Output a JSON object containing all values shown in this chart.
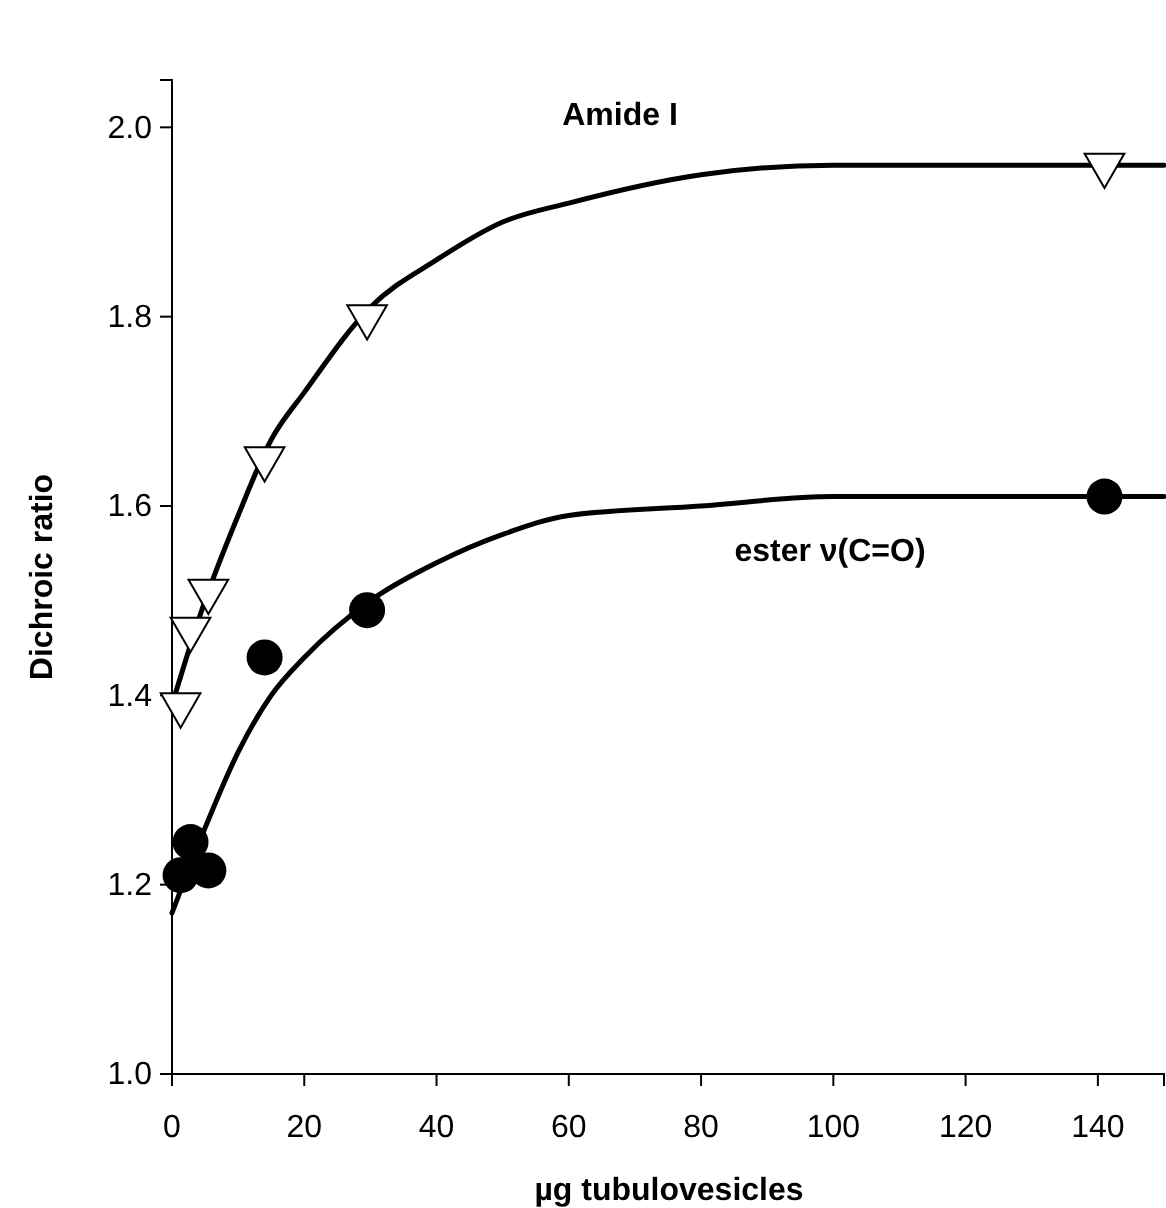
{
  "chart_data": {
    "type": "scatter",
    "xlabel": "µg tubulovesicles",
    "ylabel": "Dichroic ratio",
    "x": [
      1.3,
      2.8,
      5.5,
      14,
      29.5,
      141
    ],
    "xlim": [
      0,
      150
    ],
    "ylim": [
      1.0,
      2.05
    ],
    "xticks": [
      0,
      20,
      40,
      60,
      80,
      100,
      120,
      140
    ],
    "yticks": [
      {
        "value": 1.0,
        "label": "1.0"
      },
      {
        "value": 1.2,
        "label": "1.2"
      },
      {
        "value": 1.4,
        "label": "1.4"
      },
      {
        "value": 1.6,
        "label": "1.6"
      },
      {
        "value": 1.8,
        "label": "1.8"
      },
      {
        "value": 2.0,
        "label": "2.0"
      }
    ],
    "grid": false,
    "series": [
      {
        "type": "scatter",
        "marker": "triangle",
        "color": "#000000",
        "values": [
          1.39,
          1.47,
          1.51,
          1.65,
          1.8,
          1.96
        ]
      },
      {
        "type": "scatter",
        "marker": "circle",
        "color": "#000000",
        "values": [
          1.21,
          1.245,
          1.215,
          1.44,
          1.49,
          1.61
        ]
      },
      {
        "type": "line",
        "marker": "none",
        "line_style": "solid",
        "color": "#000000",
        "x": [
          0,
          5,
          10,
          15,
          20,
          30,
          40,
          50,
          60,
          80,
          100,
          150
        ],
        "values": [
          1.39,
          1.5,
          1.59,
          1.67,
          1.72,
          1.81,
          1.86,
          1.9,
          1.92,
          1.95,
          1.96,
          1.96
        ]
      },
      {
        "type": "line",
        "marker": "none",
        "line_style": "solid",
        "color": "#000000",
        "x": [
          0,
          5,
          10,
          15,
          20,
          30,
          40,
          50,
          60,
          80,
          100,
          150
        ],
        "values": [
          1.17,
          1.26,
          1.34,
          1.4,
          1.44,
          1.5,
          1.54,
          1.57,
          1.59,
          1.6,
          1.61,
          1.61
        ]
      }
    ],
    "annotations": [
      "Amide I",
      "ester ν(C=O)"
    ]
  }
}
